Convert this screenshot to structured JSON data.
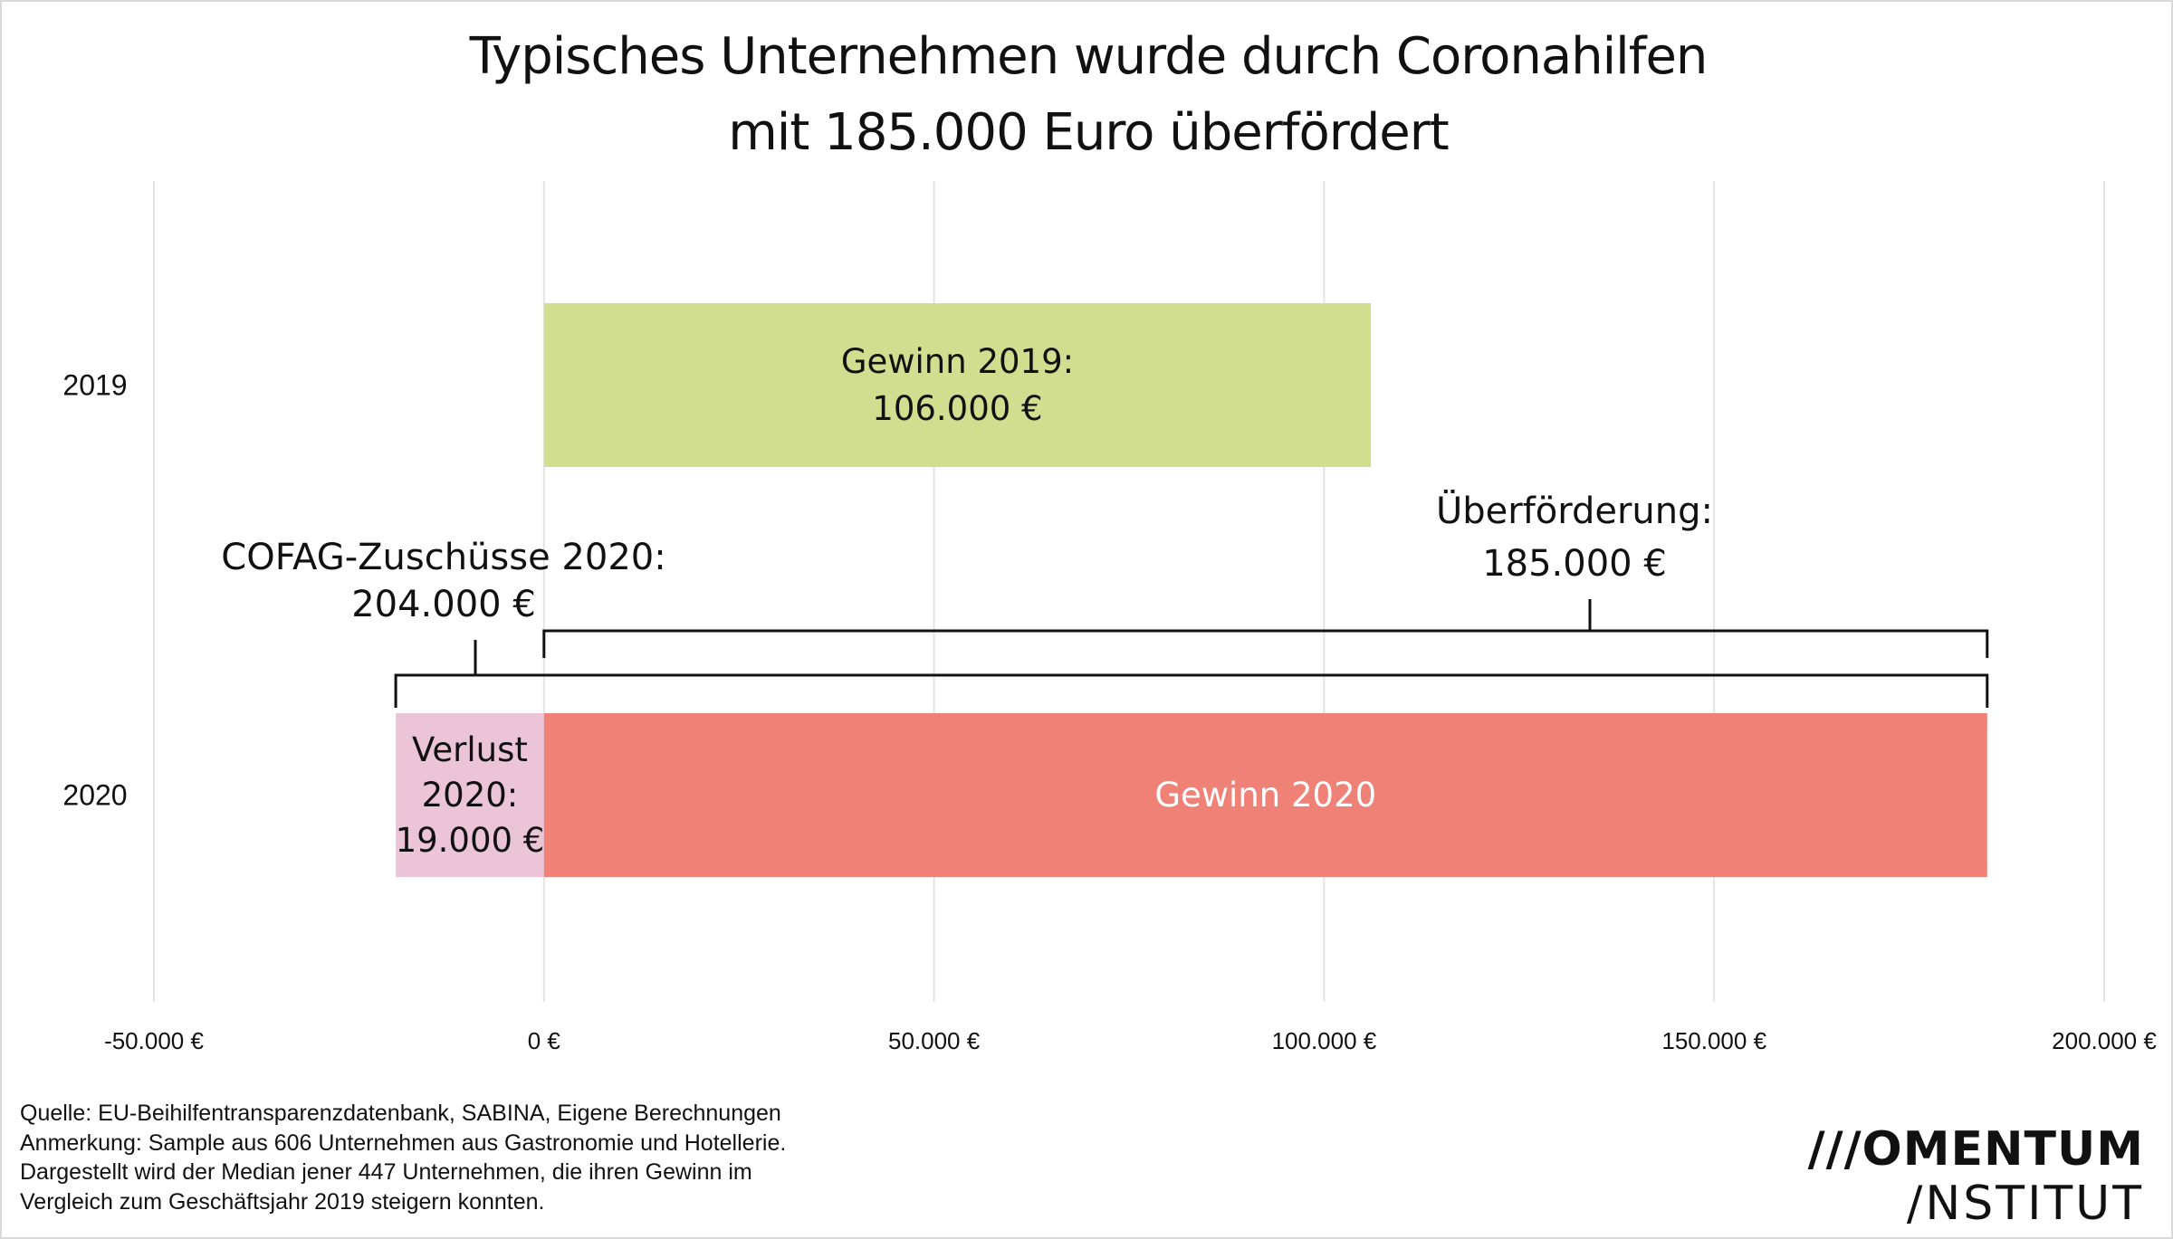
{
  "title_lines": [
    "Typisches Unternehmen wurde durch Coronahilfen",
    "mit 185.000 Euro überfördert"
  ],
  "chart_data": {
    "type": "bar",
    "orientation": "horizontal",
    "title": "Typisches Unternehmen wurde durch Coronahilfen mit 185.000 Euro überfördert",
    "categories": [
      "2019",
      "2020"
    ],
    "xlim": [
      -50000,
      200000
    ],
    "x_ticks": [
      -50000,
      0,
      50000,
      100000,
      150000,
      200000
    ],
    "x_tick_labels": [
      "-50.000 €",
      "0 €",
      "50.000 €",
      "100.000 €",
      "150.000 €",
      "200.000 €"
    ],
    "grid": true,
    "segments": [
      {
        "name": "gewinn-2019",
        "category": "2019",
        "start": 0,
        "end": 106000,
        "color": "#d1de8f",
        "label_lines": [
          "Gewinn 2019:",
          "106.000 €"
        ],
        "label_color": "#111111"
      },
      {
        "name": "verlust-2020",
        "category": "2020",
        "start": -19000,
        "end": 0,
        "color": "#ebc4d8",
        "label_lines": [
          "Verlust",
          "2020:",
          "19.000 €"
        ],
        "label_color": "#111111"
      },
      {
        "name": "gewinn-2020",
        "category": "2020",
        "start": 0,
        "end": 185000,
        "color": "#ef8177",
        "label_lines": [
          "Gewinn 2020"
        ],
        "label_color": "#ffffff"
      }
    ],
    "brackets": [
      {
        "name": "ueberfoerderung",
        "start": 0,
        "end": 185000,
        "label_lines": [
          "Überförderung:",
          "185.000 €"
        ]
      },
      {
        "name": "cofag-zuschuesse",
        "start": -19000,
        "end": 185000,
        "label_lines": [
          "COFAG-Zuschüsse 2020:",
          "204.000 €"
        ]
      }
    ]
  },
  "notes": [
    "Quelle: EU-Beihilfentransparenzdatenbank, SABINA, Eigene Berechnungen",
    "Anmerkung: Sample aus 606 Unternehmen aus Gastronomie und Hotellerie.",
    "Dargestellt wird der Median jener 447 Unternehmen, die ihren Gewinn im",
    "Vergleich zum Geschäftsjahr 2019 steigern konnten."
  ],
  "logo": {
    "line1": "///OMENTUM",
    "line2": "/NSTITUT"
  }
}
